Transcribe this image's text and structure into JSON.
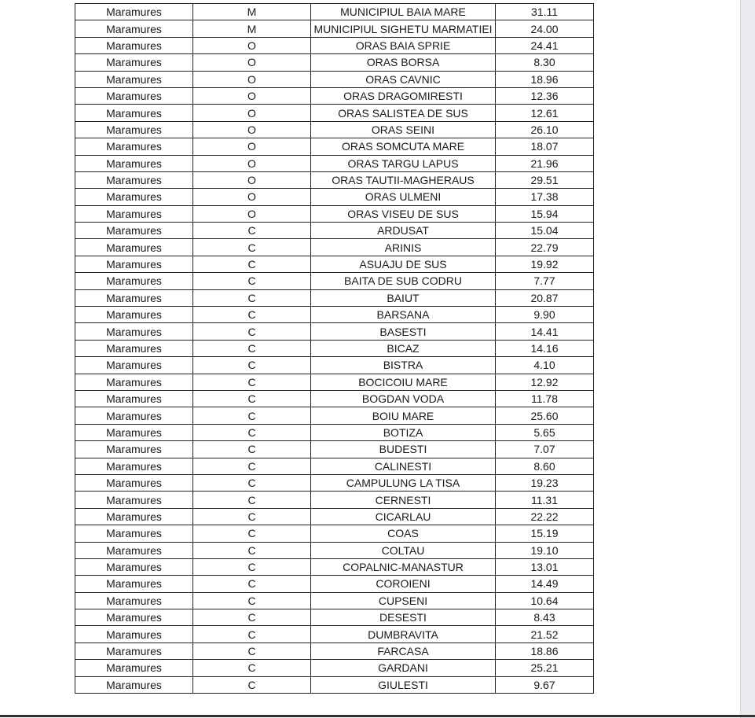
{
  "table": {
    "rows": [
      [
        "Maramures",
        "M",
        "MUNICIPIUL BAIA MARE",
        "31.11"
      ],
      [
        "Maramures",
        "M",
        "MUNICIPIUL SIGHETU MARMATIEI",
        "24.00"
      ],
      [
        "Maramures",
        "O",
        "ORAS BAIA SPRIE",
        "24.41"
      ],
      [
        "Maramures",
        "O",
        "ORAS BORSA",
        "8.30"
      ],
      [
        "Maramures",
        "O",
        "ORAS CAVNIC",
        "18.96"
      ],
      [
        "Maramures",
        "O",
        "ORAS DRAGOMIRESTI",
        "12.36"
      ],
      [
        "Maramures",
        "O",
        "ORAS SALISTEA DE SUS",
        "12.61"
      ],
      [
        "Maramures",
        "O",
        "ORAS SEINI",
        "26.10"
      ],
      [
        "Maramures",
        "O",
        "ORAS SOMCUTA MARE",
        "18.07"
      ],
      [
        "Maramures",
        "O",
        "ORAS TARGU LAPUS",
        "21.96"
      ],
      [
        "Maramures",
        "O",
        "ORAS TAUTII-MAGHERAUS",
        "29.51"
      ],
      [
        "Maramures",
        "O",
        "ORAS ULMENI",
        "17.38"
      ],
      [
        "Maramures",
        "O",
        "ORAS VISEU DE SUS",
        "15.94"
      ],
      [
        "Maramures",
        "C",
        "ARDUSAT",
        "15.04"
      ],
      [
        "Maramures",
        "C",
        "ARINIS",
        "22.79"
      ],
      [
        "Maramures",
        "C",
        "ASUAJU DE SUS",
        "19.92"
      ],
      [
        "Maramures",
        "C",
        "BAITA DE SUB CODRU",
        "7.77"
      ],
      [
        "Maramures",
        "C",
        "BAIUT",
        "20.87"
      ],
      [
        "Maramures",
        "C",
        "BARSANA",
        "9.90"
      ],
      [
        "Maramures",
        "C",
        "BASESTI",
        "14.41"
      ],
      [
        "Maramures",
        "C",
        "BICAZ",
        "14.16"
      ],
      [
        "Maramures",
        "C",
        "BISTRA",
        "4.10"
      ],
      [
        "Maramures",
        "C",
        "BOCICOIU MARE",
        "12.92"
      ],
      [
        "Maramures",
        "C",
        "BOGDAN VODA",
        "11.78"
      ],
      [
        "Maramures",
        "C",
        "BOIU MARE",
        "25.60"
      ],
      [
        "Maramures",
        "C",
        "BOTIZA",
        "5.65"
      ],
      [
        "Maramures",
        "C",
        "BUDESTI",
        "7.07"
      ],
      [
        "Maramures",
        "C",
        "CALINESTI",
        "8.60"
      ],
      [
        "Maramures",
        "C",
        "CAMPULUNG LA TISA",
        "19.23"
      ],
      [
        "Maramures",
        "C",
        "CERNESTI",
        "11.31"
      ],
      [
        "Maramures",
        "C",
        "CICARLAU",
        "22.22"
      ],
      [
        "Maramures",
        "C",
        "COAS",
        "15.19"
      ],
      [
        "Maramures",
        "C",
        "COLTAU",
        "19.10"
      ],
      [
        "Maramures",
        "C",
        "COPALNIC-MANASTUR",
        "13.01"
      ],
      [
        "Maramures",
        "C",
        "COROIENI",
        "14.49"
      ],
      [
        "Maramures",
        "C",
        "CUPSENI",
        "10.64"
      ],
      [
        "Maramures",
        "C",
        "DESESTI",
        "8.43"
      ],
      [
        "Maramures",
        "C",
        "DUMBRAVITA",
        "21.52"
      ],
      [
        "Maramures",
        "C",
        "FARCASA",
        "18.86"
      ],
      [
        "Maramures",
        "C",
        "GARDANI",
        "25.21"
      ],
      [
        "Maramures",
        "C",
        "GIULESTI",
        "9.67"
      ]
    ]
  }
}
